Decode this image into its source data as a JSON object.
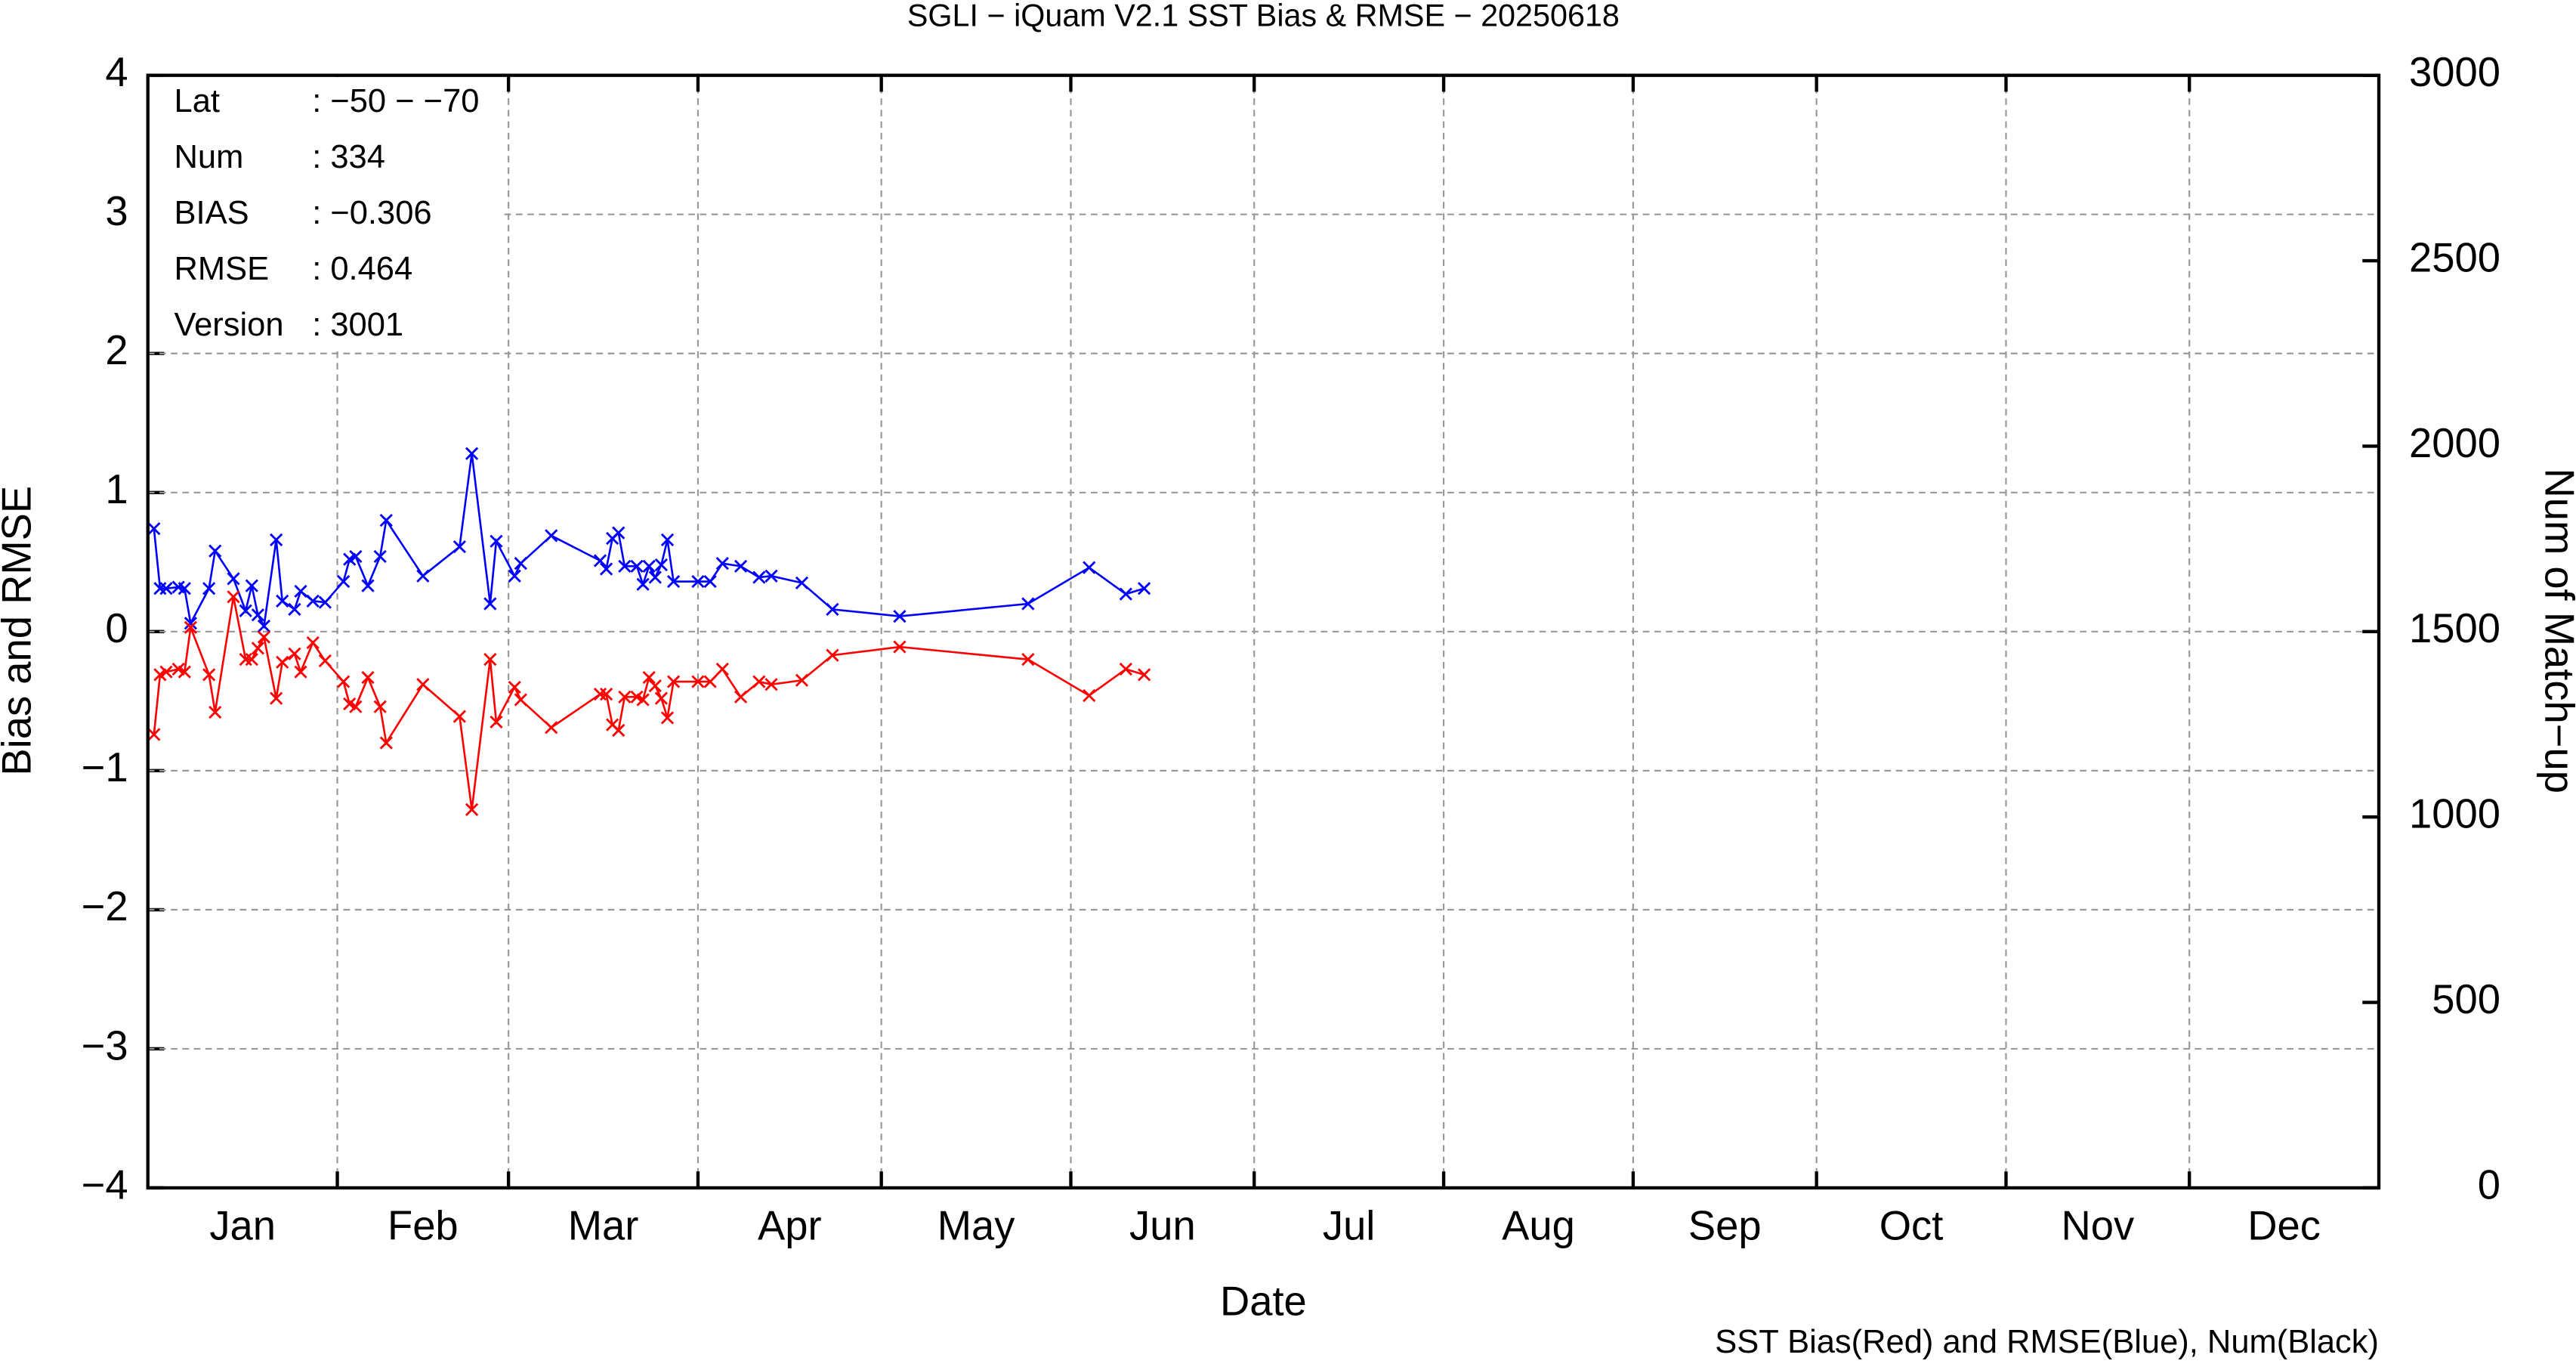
{
  "chart_data": {
    "type": "line",
    "title": "SGLI − iQuam V2.1 SST Bias & RMSE  − 20250618",
    "xlabel": "Date",
    "ylabel": "Bias and RMSE",
    "y2label": "Num of Match−up",
    "caption": "SST Bias(Red) and RMSE(Blue), Num(Black)",
    "info": [
      {
        "label": "Lat",
        "value": ": −50 − −70"
      },
      {
        "label": "Num",
        "value": ": 334"
      },
      {
        "label": "BIAS",
        "value": ": −0.306"
      },
      {
        "label": "RMSE",
        "value": ": 0.464"
      },
      {
        "label": "Version",
        "value": ": 3001"
      }
    ],
    "xlim": [
      0,
      365
    ],
    "xticks": [
      {
        "value": 15.5,
        "label": "Jan"
      },
      {
        "value": 45,
        "label": "Feb"
      },
      {
        "value": 74.5,
        "label": "Mar"
      },
      {
        "value": 105,
        "label": "Apr"
      },
      {
        "value": 135.5,
        "label": "May"
      },
      {
        "value": 166,
        "label": "Jun"
      },
      {
        "value": 196.5,
        "label": "Jul"
      },
      {
        "value": 227.5,
        "label": "Aug"
      },
      {
        "value": 258,
        "label": "Sep"
      },
      {
        "value": 288.5,
        "label": "Oct"
      },
      {
        "value": 319,
        "label": "Nov"
      },
      {
        "value": 349.5,
        "label": "Dec"
      }
    ],
    "xgrid": [
      31,
      59,
      90,
      120,
      151,
      181,
      212,
      243,
      273,
      304,
      334
    ],
    "ylim": [
      -4,
      4
    ],
    "yticks": [
      {
        "value": -4,
        "label": "−4"
      },
      {
        "value": -3,
        "label": "−3"
      },
      {
        "value": -2,
        "label": "−2"
      },
      {
        "value": -1,
        "label": "−1"
      },
      0,
      1,
      2,
      3,
      4
    ],
    "y2lim": [
      0,
      3000
    ],
    "y2ticks": [
      0,
      500,
      1000,
      1500,
      2000,
      2500,
      3000
    ],
    "grid": true,
    "x": [
      1,
      2,
      3,
      5,
      6,
      7,
      10,
      11,
      14,
      16,
      17,
      18,
      19,
      21,
      22,
      24,
      25,
      27,
      29,
      32,
      33,
      34,
      36,
      38,
      39,
      45,
      51,
      53,
      56,
      57,
      60,
      61,
      66,
      74,
      75,
      76,
      77,
      78,
      80,
      81,
      82,
      83,
      84,
      85,
      86,
      90,
      92,
      94,
      97,
      100,
      102,
      107,
      112,
      123,
      144,
      154,
      160,
      163
    ],
    "series": [
      {
        "color": "#0000ff",
        "values": [
          0.74,
          0.31,
          0.31,
          0.32,
          0.31,
          0.06,
          0.31,
          0.58,
          0.38,
          0.15,
          0.33,
          0.12,
          0.04,
          0.66,
          0.22,
          0.16,
          0.29,
          0.22,
          0.21,
          0.36,
          0.52,
          0.54,
          0.33,
          0.54,
          0.8,
          0.4,
          0.61,
          1.28,
          0.2,
          0.65,
          0.4,
          0.49,
          0.69,
          0.51,
          0.45,
          0.67,
          0.71,
          0.47,
          0.47,
          0.34,
          0.47,
          0.39,
          0.48,
          0.66,
          0.36,
          0.36,
          0.36,
          0.49,
          0.47,
          0.39,
          0.4,
          0.35,
          0.16,
          0.11,
          0.2,
          0.46,
          0.27,
          0.31
        ]
      },
      {
        "color": "#ff0000",
        "values": [
          -0.74,
          -0.31,
          -0.29,
          -0.27,
          -0.29,
          0.03,
          -0.31,
          -0.58,
          0.25,
          -0.2,
          -0.2,
          -0.12,
          -0.04,
          -0.48,
          -0.22,
          -0.16,
          -0.29,
          -0.08,
          -0.21,
          -0.36,
          -0.52,
          -0.54,
          -0.33,
          -0.54,
          -0.8,
          -0.38,
          -0.61,
          -1.28,
          -0.2,
          -0.65,
          -0.4,
          -0.49,
          -0.69,
          -0.45,
          -0.45,
          -0.67,
          -0.71,
          -0.47,
          -0.47,
          -0.49,
          -0.33,
          -0.39,
          -0.48,
          -0.62,
          -0.36,
          -0.36,
          -0.36,
          -0.27,
          -0.47,
          -0.36,
          -0.38,
          -0.35,
          -0.17,
          -0.11,
          -0.2,
          -0.46,
          -0.27,
          -0.31
        ]
      }
    ]
  }
}
